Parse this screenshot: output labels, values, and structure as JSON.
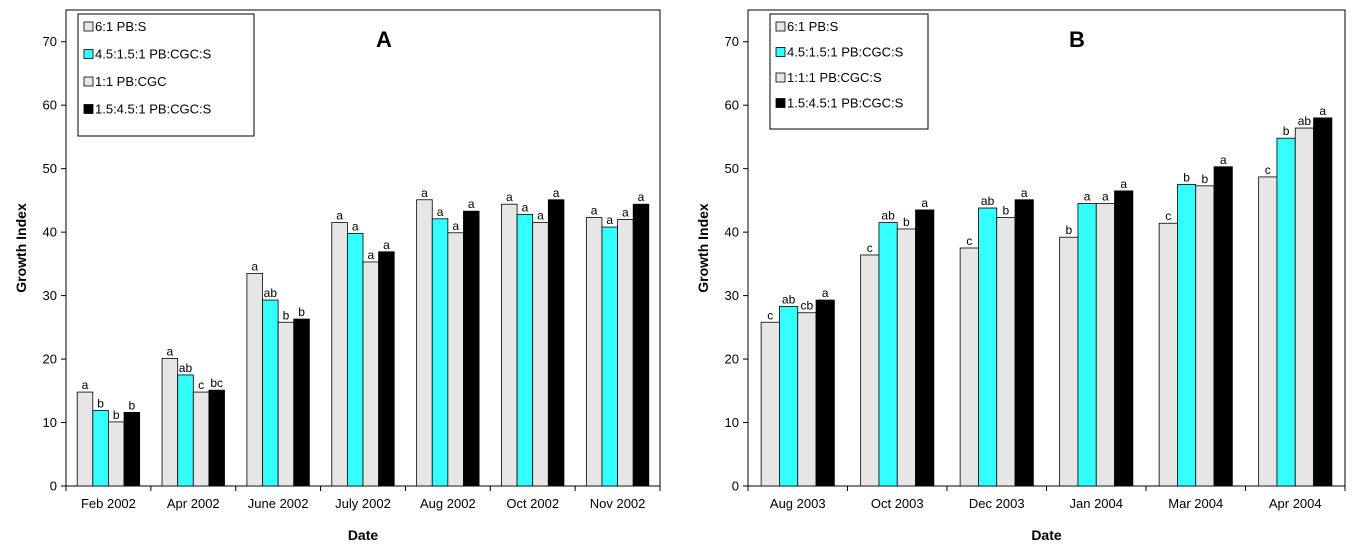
{
  "chart_data": [
    {
      "type": "bar",
      "panel_label": "A",
      "xlabel": "Date",
      "ylabel": "Growth Index",
      "ylim": [
        0,
        75
      ],
      "yticks": [
        0,
        10,
        20,
        30,
        40,
        50,
        60,
        70
      ],
      "categories": [
        "Feb 2002",
        "Apr 2002",
        "June 2002",
        "July 2002",
        "Aug 2002",
        "Oct 2002",
        "Nov 2002"
      ],
      "legend_position": "top-left",
      "series": [
        {
          "name": "6:1 PB:S",
          "color": "#e6e6e6",
          "values": [
            14.8,
            20.1,
            33.5,
            41.5,
            45.1,
            44.4,
            42.3
          ],
          "labels": [
            "a",
            "a",
            "a",
            "a",
            "a",
            "a",
            "a"
          ]
        },
        {
          "name": "4.5:1.5:1 PB:CGC:S",
          "color": "#33ffff",
          "values": [
            11.9,
            17.5,
            29.3,
            39.8,
            42.1,
            42.8,
            40.8
          ],
          "labels": [
            "b",
            "ab",
            "ab",
            "a",
            "a",
            "a",
            "a"
          ]
        },
        {
          "name": "1:1 PB:CGC",
          "color": "#e6e6e6",
          "values": [
            10.1,
            14.8,
            25.8,
            35.3,
            39.9,
            41.5,
            42.0
          ],
          "labels": [
            "b",
            "c",
            "b",
            "a",
            "a",
            "a",
            "a"
          ]
        },
        {
          "name": "1.5:4.5:1 PB:CGC:S",
          "color": "#000000",
          "values": [
            11.6,
            15.1,
            26.3,
            36.9,
            43.3,
            45.1,
            44.4
          ],
          "labels": [
            "b",
            "bc",
            "b",
            "a",
            "a",
            "a",
            "a"
          ]
        }
      ]
    },
    {
      "type": "bar",
      "panel_label": "B",
      "xlabel": "Date",
      "ylabel": "Growth Index",
      "ylim": [
        0,
        75
      ],
      "yticks": [
        0,
        10,
        20,
        30,
        40,
        50,
        60,
        70
      ],
      "categories": [
        "Aug 2003",
        "Oct 2003",
        "Dec 2003",
        "Jan 2004",
        "Mar 2004",
        "Apr 2004"
      ],
      "legend_position": "top-left",
      "series": [
        {
          "name": "6:1 PB:S",
          "color": "#e6e6e6",
          "values": [
            25.8,
            36.4,
            37.5,
            39.2,
            41.4,
            48.7
          ],
          "labels": [
            "c",
            "c",
            "c",
            "b",
            "c",
            "c"
          ]
        },
        {
          "name": "4.5:1.5:1 PB:CGC:S",
          "color": "#33ffff",
          "values": [
            28.3,
            41.5,
            43.8,
            44.5,
            47.5,
            54.8
          ],
          "labels": [
            "ab",
            "ab",
            "ab",
            "a",
            "b",
            "b"
          ]
        },
        {
          "name": "1:1:1 PB:CGC:S",
          "color": "#e6e6e6",
          "values": [
            27.3,
            40.5,
            42.3,
            44.5,
            47.3,
            56.4
          ],
          "labels": [
            "cb",
            "b",
            "b",
            "a",
            "b",
            "ab"
          ]
        },
        {
          "name": "1.5:4.5:1 PB:CGC:S",
          "color": "#000000",
          "values": [
            29.3,
            43.5,
            45.1,
            46.5,
            50.3,
            58.0
          ],
          "labels": [
            "a",
            "a",
            "a",
            "a",
            "a",
            "a"
          ]
        }
      ]
    }
  ]
}
